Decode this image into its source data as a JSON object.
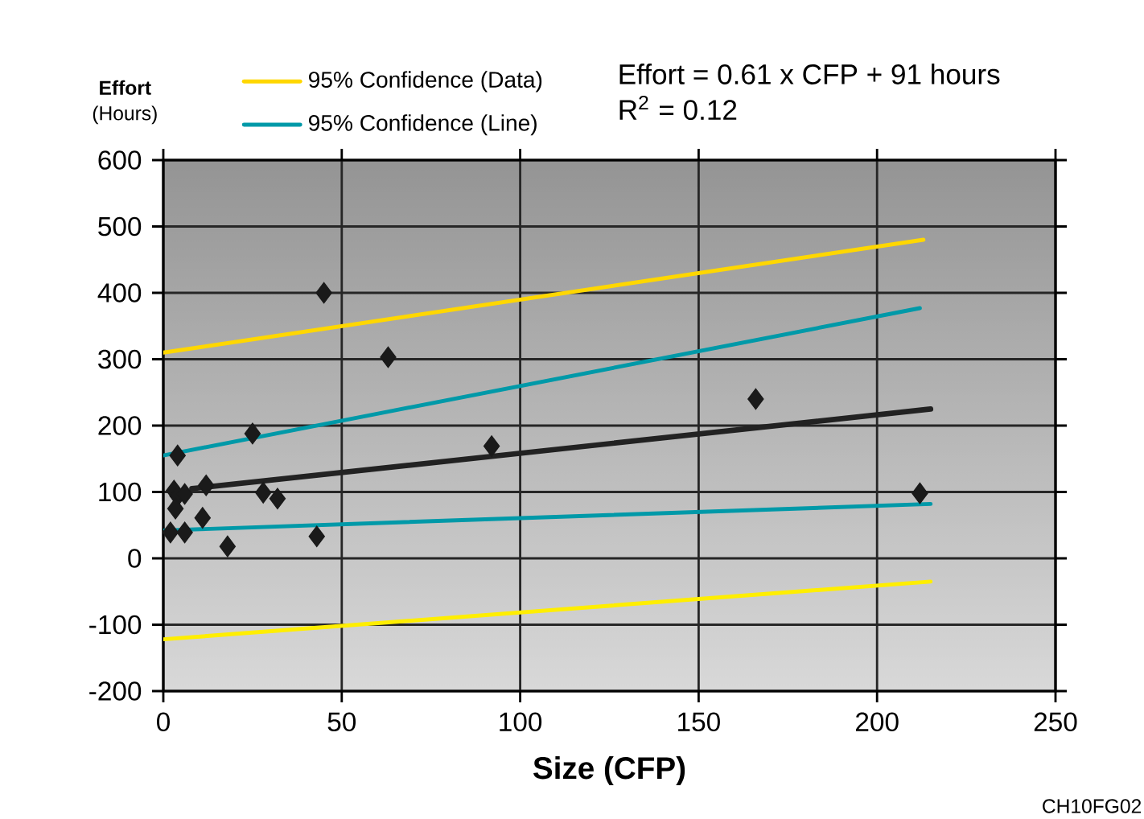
{
  "chart_data": {
    "type": "scatter",
    "xlabel": "Size (CFP)",
    "ylabel": "**Effort** (Hours)",
    "annotations": [
      "Effort = 0.61 x CFP + 91 hours",
      "R$^{2}$ = 0.12",
      "CH10FG02"
    ],
    "xlim": [
      0,
      250
    ],
    "xticks": [
      0,
      50,
      100,
      150,
      200,
      250
    ],
    "ylim": [
      -200,
      600
    ],
    "yticks": [
      -200,
      -100,
      0,
      100,
      200,
      300,
      400,
      500,
      600
    ],
    "grid": true,
    "legend": "top",
    "series": [
      {
        "marker": "diamond",
        "color": "#1a1a1a",
        "x": [
          4,
          3,
          4,
          6,
          3.4,
          2,
          6,
          12,
          11,
          18,
          25,
          28,
          32,
          43,
          45,
          63,
          92,
          166,
          212
        ],
        "values": [
          155,
          102,
          94,
          97,
          75,
          39,
          39,
          110,
          61,
          18,
          188,
          99,
          90,
          33,
          400,
          303,
          169,
          240,
          98
        ]
      },
      {
        "type": "line",
        "color": "#222222",
        "x": [
          8,
          215
        ],
        "values": [
          105,
          225
        ]
      },
      {
        "type": "line",
        "name": "95% Confidence (Data)",
        "color": "#ffd700",
        "x": [
          0,
          213
        ],
        "values": [
          310,
          480
        ]
      },
      {
        "type": "line",
        "color": "#ffee00",
        "x": [
          0,
          215
        ],
        "values": [
          -122,
          -35
        ]
      },
      {
        "type": "line",
        "name": "95% Confidence (Line)",
        "color": "#0099a8",
        "x": [
          0,
          212
        ],
        "values": [
          155,
          377
        ]
      },
      {
        "type": "line",
        "color": "#0099a8",
        "x": [
          0,
          215
        ],
        "values": [
          42,
          82
        ]
      }
    ]
  }
}
